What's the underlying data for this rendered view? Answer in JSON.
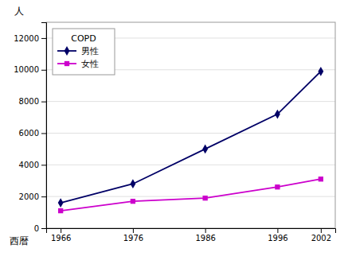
{
  "chart_data": {
    "type": "line",
    "x_label": "西暦",
    "y_label": "人",
    "legend_title": "COPD",
    "x": [
      1966,
      1976,
      1986,
      1996,
      2002
    ],
    "series": [
      {
        "name": "男性",
        "color": "#000066",
        "marker": "diamond",
        "values": [
          1600,
          2800,
          5000,
          7200,
          9900
        ]
      },
      {
        "name": "女性",
        "color": "#cc00cc",
        "marker": "square",
        "values": [
          1100,
          1700,
          1900,
          2600,
          3100
        ]
      }
    ],
    "xlim": [
      1964,
      2004
    ],
    "xticks": [
      1966,
      1976,
      1986,
      1996,
      2002
    ],
    "ylim": [
      0,
      13000
    ],
    "yticks": [
      0,
      2000,
      4000,
      6000,
      8000,
      10000,
      12000
    ],
    "grid": true,
    "legend": "upper left"
  }
}
